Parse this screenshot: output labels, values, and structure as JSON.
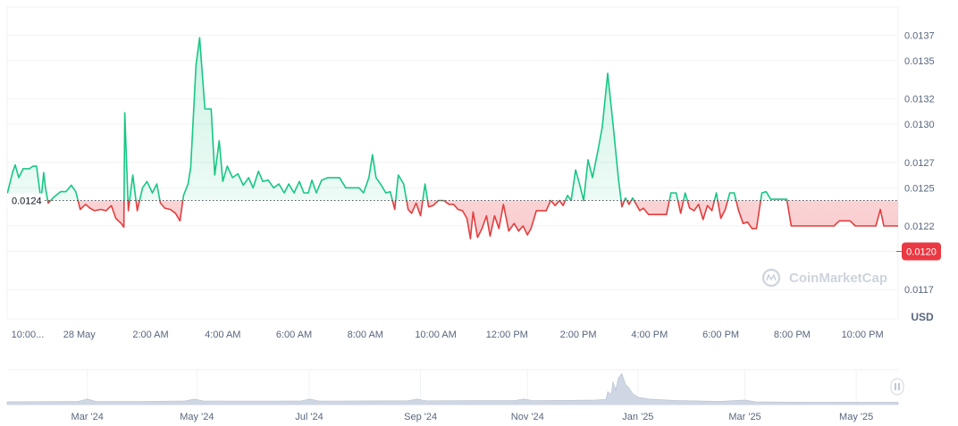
{
  "chart_data": {
    "type": "area",
    "title": "",
    "xlabel": "",
    "ylabel": "USD",
    "ylim": [
      0.01147,
      0.01392
    ],
    "baseline": 0.0124,
    "baseline_label": "0.0124",
    "current_value": 0.012,
    "current_label": "0.0120",
    "y_ticks": [
      {
        "value": 0.0137,
        "label": "0.0137"
      },
      {
        "value": 0.0135,
        "label": "0.0135"
      },
      {
        "value": 0.0132,
        "label": "0.0132"
      },
      {
        "value": 0.013,
        "label": "0.0130"
      },
      {
        "value": 0.0127,
        "label": "0.0127"
      },
      {
        "value": 0.0125,
        "label": "0.0125"
      },
      {
        "value": 0.0122,
        "label": "0.0122"
      },
      {
        "value": 0.012,
        "label": "0.0120"
      },
      {
        "value": 0.0117,
        "label": "0.0117"
      }
    ],
    "x_range": [
      0,
      100
    ],
    "x_ticks": [
      {
        "x": 2.3,
        "label": "10:00..."
      },
      {
        "x": 8.1,
        "label": "28 May"
      },
      {
        "x": 16.1,
        "label": "2:00 AM"
      },
      {
        "x": 24.2,
        "label": "4:00 AM"
      },
      {
        "x": 32.2,
        "label": "6:00 AM"
      },
      {
        "x": 40.2,
        "label": "8:00 AM"
      },
      {
        "x": 48.1,
        "label": "10:00 AM"
      },
      {
        "x": 56.1,
        "label": "12:00 PM"
      },
      {
        "x": 64.1,
        "label": "2:00 PM"
      },
      {
        "x": 72.1,
        "label": "4:00 PM"
      },
      {
        "x": 80.1,
        "label": "6:00 PM"
      },
      {
        "x": 88.1,
        "label": "8:00 PM"
      },
      {
        "x": 96.0,
        "label": "10:00 PM"
      }
    ],
    "series": [
      {
        "name": "price",
        "points": [
          [
            0.0,
            0.01245
          ],
          [
            0.6,
            0.01262
          ],
          [
            0.9,
            0.01268
          ],
          [
            1.3,
            0.01258
          ],
          [
            1.8,
            0.01265
          ],
          [
            2.5,
            0.01265
          ],
          [
            2.9,
            0.01267
          ],
          [
            3.3,
            0.01267
          ],
          [
            3.8,
            0.0124
          ],
          [
            4.1,
            0.01262
          ],
          [
            4.3,
            0.0125
          ],
          [
            4.6,
            0.01238
          ],
          [
            5.3,
            0.01243
          ],
          [
            6.0,
            0.01247
          ],
          [
            6.6,
            0.01247
          ],
          [
            7.2,
            0.01252
          ],
          [
            7.7,
            0.01247
          ],
          [
            8.2,
            0.01233
          ],
          [
            8.8,
            0.01237
          ],
          [
            9.3,
            0.01234
          ],
          [
            9.8,
            0.01232
          ],
          [
            10.5,
            0.01233
          ],
          [
            11.1,
            0.01232
          ],
          [
            11.7,
            0.01236
          ],
          [
            12.2,
            0.01226
          ],
          [
            12.8,
            0.01222
          ],
          [
            13.1,
            0.01219
          ],
          [
            13.2,
            0.01309
          ],
          [
            13.6,
            0.01232
          ],
          [
            14.1,
            0.0126
          ],
          [
            14.6,
            0.01232
          ],
          [
            15.2,
            0.0125
          ],
          [
            15.7,
            0.01255
          ],
          [
            16.3,
            0.01246
          ],
          [
            16.8,
            0.01253
          ],
          [
            17.2,
            0.01238
          ],
          [
            17.7,
            0.01234
          ],
          [
            18.3,
            0.01233
          ],
          [
            18.9,
            0.0123
          ],
          [
            19.4,
            0.01224
          ],
          [
            19.8,
            0.01244
          ],
          [
            20.3,
            0.01253
          ],
          [
            20.6,
            0.01266
          ],
          [
            21.2,
            0.01347
          ],
          [
            21.6,
            0.01368
          ],
          [
            22.2,
            0.01312
          ],
          [
            22.9,
            0.01312
          ],
          [
            23.3,
            0.0126
          ],
          [
            23.8,
            0.01287
          ],
          [
            24.2,
            0.01255
          ],
          [
            24.7,
            0.01267
          ],
          [
            25.3,
            0.01258
          ],
          [
            25.9,
            0.01261
          ],
          [
            26.5,
            0.01252
          ],
          [
            27.1,
            0.01258
          ],
          [
            27.6,
            0.0125
          ],
          [
            28.2,
            0.01263
          ],
          [
            28.7,
            0.01255
          ],
          [
            29.3,
            0.01256
          ],
          [
            29.9,
            0.0125
          ],
          [
            30.5,
            0.01253
          ],
          [
            31.1,
            0.01246
          ],
          [
            31.6,
            0.01253
          ],
          [
            32.2,
            0.01246
          ],
          [
            32.8,
            0.01255
          ],
          [
            33.3,
            0.01246
          ],
          [
            33.8,
            0.01246
          ],
          [
            34.2,
            0.01256
          ],
          [
            34.7,
            0.01246
          ],
          [
            35.3,
            0.01256
          ],
          [
            36.0,
            0.01258
          ],
          [
            36.7,
            0.01258
          ],
          [
            37.3,
            0.01258
          ],
          [
            38.0,
            0.0125
          ],
          [
            38.9,
            0.0125
          ],
          [
            39.5,
            0.0125
          ],
          [
            40.0,
            0.01246
          ],
          [
            40.6,
            0.01258
          ],
          [
            41.0,
            0.01276
          ],
          [
            41.4,
            0.01258
          ],
          [
            42.0,
            0.01252
          ],
          [
            42.5,
            0.01246
          ],
          [
            43.0,
            0.01247
          ],
          [
            43.5,
            0.01233
          ],
          [
            43.9,
            0.0126
          ],
          [
            44.5,
            0.01253
          ],
          [
            45.0,
            0.01233
          ],
          [
            45.4,
            0.0123
          ],
          [
            45.9,
            0.01238
          ],
          [
            46.4,
            0.01228
          ],
          [
            46.9,
            0.01253
          ],
          [
            47.3,
            0.01235
          ],
          [
            47.8,
            0.01236
          ],
          [
            48.4,
            0.0124
          ],
          [
            49.0,
            0.0124
          ],
          [
            49.6,
            0.01237
          ],
          [
            50.1,
            0.01237
          ],
          [
            50.6,
            0.01233
          ],
          [
            51.1,
            0.01232
          ],
          [
            51.6,
            0.01226
          ],
          [
            52.0,
            0.0121
          ],
          [
            52.3,
            0.01231
          ],
          [
            52.8,
            0.01211
          ],
          [
            53.3,
            0.01218
          ],
          [
            53.8,
            0.01228
          ],
          [
            54.2,
            0.01212
          ],
          [
            54.7,
            0.01228
          ],
          [
            55.2,
            0.01218
          ],
          [
            55.7,
            0.01237
          ],
          [
            56.3,
            0.01216
          ],
          [
            56.9,
            0.01222
          ],
          [
            57.4,
            0.01216
          ],
          [
            57.9,
            0.0122
          ],
          [
            58.4,
            0.01213
          ],
          [
            58.8,
            0.01218
          ],
          [
            59.4,
            0.01232
          ],
          [
            60.0,
            0.01232
          ],
          [
            60.5,
            0.01232
          ],
          [
            61.0,
            0.0124
          ],
          [
            61.5,
            0.01236
          ],
          [
            62.0,
            0.0124
          ],
          [
            62.4,
            0.01236
          ],
          [
            62.9,
            0.01244
          ],
          [
            63.3,
            0.0124
          ],
          [
            63.8,
            0.01264
          ],
          [
            64.2,
            0.01254
          ],
          [
            64.7,
            0.0124
          ],
          [
            65.2,
            0.01272
          ],
          [
            65.7,
            0.01258
          ],
          [
            66.3,
            0.01279
          ],
          [
            66.8,
            0.01298
          ],
          [
            67.4,
            0.0134
          ],
          [
            68.0,
            0.013
          ],
          [
            68.6,
            0.01258
          ],
          [
            69.0,
            0.01235
          ],
          [
            69.4,
            0.01242
          ],
          [
            69.8,
            0.01237
          ],
          [
            70.2,
            0.01242
          ],
          [
            70.6,
            0.01237
          ],
          [
            71.0,
            0.01232
          ],
          [
            71.4,
            0.01234
          ],
          [
            72.0,
            0.01229
          ],
          [
            72.6,
            0.01229
          ],
          [
            73.3,
            0.01229
          ],
          [
            74.0,
            0.01229
          ],
          [
            74.5,
            0.01246
          ],
          [
            75.1,
            0.01246
          ],
          [
            75.6,
            0.0123
          ],
          [
            76.1,
            0.01246
          ],
          [
            76.6,
            0.01234
          ],
          [
            77.1,
            0.01232
          ],
          [
            77.6,
            0.01237
          ],
          [
            78.1,
            0.01225
          ],
          [
            78.6,
            0.01236
          ],
          [
            79.1,
            0.01232
          ],
          [
            79.6,
            0.01246
          ],
          [
            80.1,
            0.01226
          ],
          [
            80.6,
            0.01233
          ],
          [
            81.1,
            0.01246
          ],
          [
            81.6,
            0.01246
          ],
          [
            82.1,
            0.01232
          ],
          [
            82.6,
            0.01222
          ],
          [
            83.1,
            0.01223
          ],
          [
            83.6,
            0.01218
          ],
          [
            84.1,
            0.01218
          ],
          [
            84.7,
            0.01246
          ],
          [
            85.2,
            0.01247
          ],
          [
            85.7,
            0.01241
          ],
          [
            86.3,
            0.01241
          ],
          [
            86.9,
            0.01241
          ],
          [
            87.5,
            0.01241
          ],
          [
            88.0,
            0.0122
          ],
          [
            88.6,
            0.0122
          ],
          [
            89.2,
            0.0122
          ],
          [
            89.8,
            0.0122
          ],
          [
            90.4,
            0.0122
          ],
          [
            91.0,
            0.0122
          ],
          [
            91.6,
            0.0122
          ],
          [
            92.2,
            0.0122
          ],
          [
            92.8,
            0.0122
          ],
          [
            93.4,
            0.01224
          ],
          [
            94.0,
            0.01224
          ],
          [
            94.6,
            0.01224
          ],
          [
            95.2,
            0.0122
          ],
          [
            95.8,
            0.0122
          ],
          [
            96.4,
            0.0122
          ],
          [
            97.0,
            0.0122
          ],
          [
            97.5,
            0.0122
          ],
          [
            98.0,
            0.01233
          ],
          [
            98.4,
            0.0122
          ],
          [
            99.0,
            0.0122
          ],
          [
            100,
            0.0122
          ]
        ]
      }
    ],
    "colors": {
      "up_line": "#16c784",
      "down_line": "#e23e3e",
      "up_fill": "#16c784",
      "down_fill": "#ea3943",
      "grid": "#eff2f5",
      "axis_text": "#58667e",
      "dark_text": "#0d1421",
      "badge_bg": "#ea3943",
      "navigator_fill": "#cfd6e4"
    },
    "watermark": "CoinMarketCap",
    "navigator": {
      "labels": [
        {
          "x": 9.0,
          "label": "Mar '24"
        },
        {
          "x": 21.3,
          "label": "May '24"
        },
        {
          "x": 33.9,
          "label": "Jul '24"
        },
        {
          "x": 46.4,
          "label": "Sep '24"
        },
        {
          "x": 58.4,
          "label": "Nov '24"
        },
        {
          "x": 70.8,
          "label": "Jan '25"
        },
        {
          "x": 82.8,
          "label": "Mar '25"
        },
        {
          "x": 95.3,
          "label": "May '25"
        }
      ],
      "volume_points": [
        [
          0,
          0.3
        ],
        [
          5,
          0.32
        ],
        [
          8,
          0.35
        ],
        [
          9,
          0.6
        ],
        [
          10,
          0.34
        ],
        [
          15,
          0.33
        ],
        [
          20,
          0.4
        ],
        [
          21,
          0.6
        ],
        [
          22,
          0.4
        ],
        [
          27,
          0.38
        ],
        [
          33,
          0.4
        ],
        [
          34,
          0.6
        ],
        [
          35,
          0.38
        ],
        [
          40,
          0.4
        ],
        [
          45,
          0.42
        ],
        [
          46,
          0.6
        ],
        [
          47,
          0.41
        ],
        [
          52,
          0.43
        ],
        [
          57,
          0.45
        ],
        [
          58,
          0.6
        ],
        [
          59,
          0.44
        ],
        [
          63,
          0.46
        ],
        [
          66,
          0.5
        ],
        [
          67.2,
          0.55
        ],
        [
          67.4,
          1.4
        ],
        [
          67.8,
          1.1
        ],
        [
          68.0,
          2.5
        ],
        [
          68.3,
          1.6
        ],
        [
          68.6,
          2.9
        ],
        [
          69.0,
          3.4
        ],
        [
          69.4,
          2.2
        ],
        [
          69.8,
          1.8
        ],
        [
          70.2,
          1.2
        ],
        [
          70.8,
          0.8
        ],
        [
          72,
          0.6
        ],
        [
          75,
          0.45
        ],
        [
          80,
          0.35
        ],
        [
          82.8,
          0.5
        ],
        [
          84,
          0.3
        ],
        [
          90,
          0.25
        ],
        [
          95,
          0.25
        ],
        [
          100,
          0.25
        ]
      ]
    }
  }
}
